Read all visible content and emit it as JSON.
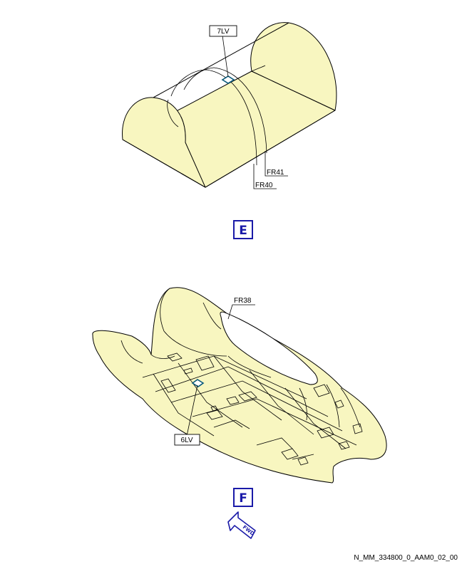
{
  "view_e": {
    "letter": "E",
    "labels": {
      "panel": "7LV",
      "frame_a": "FR41",
      "frame_b": "FR40"
    }
  },
  "view_f": {
    "letter": "F",
    "labels": {
      "frame": "FR38",
      "panel": "6LV"
    },
    "fwd_label": "FWD"
  },
  "reference": "N_MM_334800_0_AAM0_02_00",
  "colors": {
    "fuselage": "#f8f6c0",
    "view_letter": "#1a1aa8",
    "access_panel": "#0a5a7a"
  }
}
